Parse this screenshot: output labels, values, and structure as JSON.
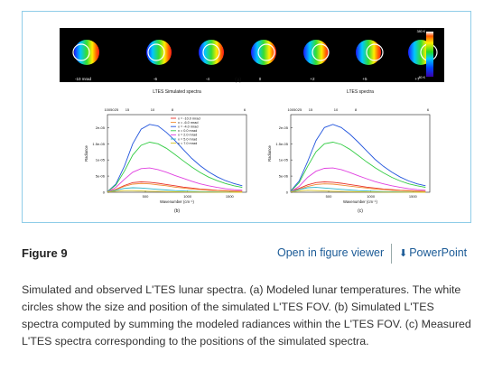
{
  "figure": {
    "moon_strip": {
      "labels": [
        "-10 mrad",
        "-6",
        "-4",
        "0",
        "+2",
        "+5",
        "+7"
      ],
      "colorbar_top": "380 K",
      "colorbar_bottom": "80 K",
      "panel_label": "(a)"
    },
    "chart_data": [
      {
        "type": "line",
        "title": "LTES Simulated spectra",
        "xlabel": "Wavenumber (cm⁻¹)",
        "ylabel": "Radiance",
        "top_axis_ticks": [
          "10050",
          "25",
          "15",
          "10",
          "8",
          "6"
        ],
        "x_ticks": [
          "500",
          "1000",
          "1500"
        ],
        "y_ticks": [
          "2e-05",
          "1.5e-05",
          "1e-05",
          "5e-06",
          "0"
        ],
        "xlim": [
          50,
          1700
        ],
        "ylim": [
          0,
          2.4e-05
        ],
        "legend_position": "top-right",
        "panel_label": "(b)",
        "x": [
          50,
          150,
          250,
          350,
          450,
          550,
          650,
          750,
          850,
          950,
          1050,
          1150,
          1250,
          1350,
          1450,
          1550,
          1650
        ],
        "series": [
          {
            "name": "x = -10.0 mrad",
            "color": "#e8332a",
            "values": [
              1e-07,
              9e-07,
              2.1e-06,
              3e-06,
              3.2e-06,
              3.1e-06,
              2.8e-06,
              2.4e-06,
              2e-06,
              1.6e-06,
              1.3e-06,
              1e-06,
              8e-07,
              6e-07,
              5e-07,
              4e-07,
              3e-07
            ]
          },
          {
            "name": "x = -6.0 mrad",
            "color": "#f08a30",
            "values": [
              1e-07,
              8e-07,
              1.8e-06,
              2.5e-06,
              2.7e-06,
              2.6e-06,
              2.3e-06,
              2e-06,
              1.6e-06,
              1.3e-06,
              1e-06,
              8e-07,
              6e-07,
              5e-07,
              4e-07,
              3e-07,
              2e-07
            ]
          },
          {
            "name": "x = -4.0 mrad",
            "color": "#2255dd",
            "values": [
              2e-07,
              2.5e-06,
              8e-06,
              1.5e-05,
              1.95e-05,
              2.1e-05,
              2.05e-05,
              1.85e-05,
              1.6e-05,
              1.32e-05,
              1.05e-05,
              8.2e-06,
              6.3e-06,
              4.8e-06,
              3.6e-06,
              2.7e-06,
              2e-06
            ]
          },
          {
            "name": "x = 0.0 mrad",
            "color": "#33cc44",
            "values": [
              2e-07,
              2.2e-06,
              6.5e-06,
              1.15e-05,
              1.45e-05,
              1.55e-05,
              1.5e-05,
              1.36e-05,
              1.17e-05,
              9.7e-06,
              7.8e-06,
              6.1e-06,
              4.7e-06,
              3.6e-06,
              2.7e-06,
              2e-06,
              1.5e-06
            ]
          },
          {
            "name": "x = 2.0 mrad",
            "color": "#e040e0",
            "values": [
              1e-07,
              1.5e-06,
              4e-06,
              6.2e-06,
              7.3e-06,
              7.5e-06,
              7e-06,
              6.2e-06,
              5.2e-06,
              4.3e-06,
              3.4e-06,
              2.6e-06,
              2e-06,
              1.5e-06,
              1.1e-06,
              8e-07,
              6e-07
            ]
          },
          {
            "name": "x = 5.0 mrad",
            "color": "#2ab5c8",
            "values": [
              1e-07,
              6e-07,
              1.2e-06,
              1.4e-06,
              1.3e-06,
              1.1e-06,
              9e-07,
              7e-07,
              5e-07,
              4e-07,
              3e-07,
              2e-07,
              1.5e-07,
              1e-07,
              8e-08,
              6e-08,
              4e-08
            ]
          },
          {
            "name": "x = 7.0 mrad",
            "color": "#d4c020",
            "values": [
              1e-07,
              3e-07,
              5e-07,
              5e-07,
              4e-07,
              3e-07,
              2.5e-07,
              2e-07,
              1.5e-07,
              1e-07,
              8e-08,
              6e-08,
              4e-08,
              3e-08,
              2e-08,
              1e-08,
              1e-08
            ]
          }
        ]
      },
      {
        "type": "line",
        "title": "LTES spectra",
        "xlabel": "Wavenumber (cm⁻¹)",
        "ylabel": "Radiance",
        "top_axis_ticks": [
          "10050",
          "25",
          "15",
          "10",
          "8",
          "6"
        ],
        "x_ticks": [
          "500",
          "1000",
          "1500"
        ],
        "y_ticks": [
          "2e-05",
          "1.5e-05",
          "1e-05",
          "5e-06",
          "0"
        ],
        "xlim": [
          50,
          1700
        ],
        "ylim": [
          0,
          2.4e-05
        ],
        "panel_label": "(c)",
        "x": [
          50,
          150,
          250,
          350,
          450,
          550,
          650,
          750,
          850,
          950,
          1050,
          1150,
          1250,
          1350,
          1450,
          1550,
          1650
        ],
        "series": [
          {
            "color": "#e8332a",
            "values": [
              3e-07,
              1.2e-06,
              2.3e-06,
              3e-06,
              3.2e-06,
              3.1e-06,
              2.8e-06,
              2.4e-06,
              2e-06,
              1.6e-06,
              1.3e-06,
              1e-06,
              8e-07,
              6e-07,
              5e-07,
              4e-07,
              3e-07
            ]
          },
          {
            "color": "#f08a30",
            "values": [
              2e-07,
              9e-07,
              1.8e-06,
              2.4e-06,
              2.6e-06,
              2.5e-06,
              2.2e-06,
              1.9e-06,
              1.6e-06,
              1.3e-06,
              1e-06,
              8e-07,
              6e-07,
              5e-07,
              4e-07,
              3e-07,
              2e-07
            ]
          },
          {
            "color": "#2255dd",
            "values": [
              4e-07,
              3.5e-06,
              9.5e-06,
              1.6e-05,
              2e-05,
              2.1e-05,
              2e-05,
              1.8e-05,
              1.55e-05,
              1.28e-05,
              1.02e-05,
              8e-06,
              6.2e-06,
              4.7e-06,
              3.5e-06,
              2.6e-06,
              2e-06
            ]
          },
          {
            "color": "#33cc44",
            "values": [
              3e-07,
              3e-06,
              8e-06,
              1.25e-05,
              1.5e-05,
              1.55e-05,
              1.48e-05,
              1.33e-05,
              1.14e-05,
              9.4e-06,
              7.6e-06,
              6e-06,
              4.6e-06,
              3.5e-06,
              2.6e-06,
              2e-06,
              1.5e-06
            ]
          },
          {
            "color": "#e040e0",
            "values": [
              2e-07,
              1.8e-06,
              4.6e-06,
              6.5e-06,
              7.4e-06,
              7.5e-06,
              7e-06,
              6.1e-06,
              5.1e-06,
              4.2e-06,
              3.3e-06,
              2.6e-06,
              2e-06,
              1.5e-06,
              1.1e-06,
              8e-07,
              6e-07
            ]
          },
          {
            "color": "#2ab5c8",
            "values": [
              2e-07,
              8e-07,
              1.4e-06,
              1.5e-06,
              1.3e-06,
              1.1e-06,
              9e-07,
              7e-07,
              5e-07,
              4e-07,
              3e-07,
              2e-07,
              1.5e-07,
              1e-07,
              8e-08,
              6e-08,
              4e-08
            ]
          },
          {
            "color": "#d4c020",
            "values": [
              1e-07,
              4e-07,
              6e-07,
              5e-07,
              4e-07,
              3e-07,
              2.5e-07,
              2e-07,
              1.5e-07,
              1e-07,
              8e-08,
              6e-08,
              4e-08,
              3e-08,
              2e-08,
              1e-08,
              1e-08
            ]
          }
        ]
      }
    ]
  },
  "footer": {
    "title": "Figure 9",
    "viewer_link": "Open in figure viewer",
    "powerpoint_link": "PowerPoint"
  },
  "caption": "Simulated and observed L'TES lunar spectra. (a) Modeled lunar temperatures. The white circles show the size and position of the simulated L'TES FOV. (b) Simulated L'TES spectra computed by summing the modeled radiances within the L'TES FOV. (c) Measured L'TES spectra corresponding to the positions of the simulated spectra."
}
